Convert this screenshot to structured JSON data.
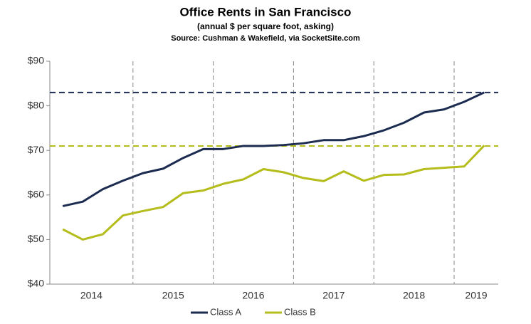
{
  "chart_data": {
    "type": "line",
    "title": "Office Rents in San Francisco",
    "subtitle": "(annual $ per square foot, asking)",
    "source": "Source: Cushman & Wakefield, via SocketSite.com",
    "year_labels": [
      "2014",
      "2015",
      "2016",
      "2017",
      "2018",
      "2019"
    ],
    "series": [
      {
        "name": "Class A",
        "color": "#1c2b50",
        "values": [
          57.5,
          58.5,
          61.3,
          63.2,
          64.9,
          65.9,
          68.3,
          70.3,
          70.3,
          71.0,
          71.0,
          71.2,
          71.6,
          72.3,
          72.3,
          73.2,
          74.5,
          76.2,
          78.5,
          79.2,
          80.9,
          83.0
        ]
      },
      {
        "name": "Class B",
        "color": "#b5bd1c",
        "values": [
          52.3,
          50.0,
          51.2,
          55.4,
          56.4,
          57.3,
          60.4,
          61.0,
          62.5,
          63.5,
          65.8,
          65.1,
          63.8,
          63.1,
          65.3,
          63.2,
          64.5,
          64.6,
          65.8,
          66.1,
          66.4,
          71.1
        ]
      }
    ],
    "reference_lines": [
      {
        "value": 83,
        "color": "#1c2b50"
      },
      {
        "value": 71,
        "color": "#b5bd1c"
      }
    ],
    "ylim": [
      40,
      90
    ],
    "yticks": [
      {
        "value": 40,
        "label": "$40"
      },
      {
        "value": 50,
        "label": "$50"
      },
      {
        "value": 60,
        "label": "$60"
      },
      {
        "value": 70,
        "label": "$70"
      },
      {
        "value": 80,
        "label": "$80"
      },
      {
        "value": 90,
        "label": "$90"
      }
    ],
    "legend": "bottom"
  }
}
